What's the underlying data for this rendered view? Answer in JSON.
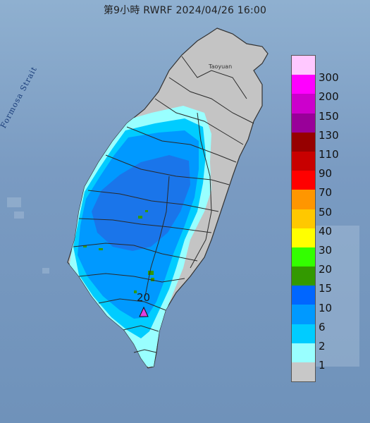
{
  "title": "第9小時  RWRF 2024/04/26 16:00",
  "sea_labels": {
    "strait": "Formosa Strait"
  },
  "place_labels": {
    "taoyuan": "Taoyuan"
  },
  "legend": {
    "entries": [
      {
        "label": "300",
        "color": "#ffc8ff"
      },
      {
        "label": "200",
        "color": "#ff00ff"
      },
      {
        "label": "150",
        "color": "#cc00cc"
      },
      {
        "label": "130",
        "color": "#990099"
      },
      {
        "label": "110",
        "color": "#960000"
      },
      {
        "label": "90",
        "color": "#c80000"
      },
      {
        "label": "70",
        "color": "#ff0000"
      },
      {
        "label": "50",
        "color": "#ff9600"
      },
      {
        "label": "40",
        "color": "#ffc800"
      },
      {
        "label": "30",
        "color": "#ffff00"
      },
      {
        "label": "20",
        "color": "#33ff00"
      },
      {
        "label": "15",
        "color": "#339900"
      },
      {
        "label": "10",
        "color": "#0066ff"
      },
      {
        "label": "6",
        "color": "#0099ff"
      },
      {
        "label": "2",
        "color": "#00ccff"
      },
      {
        "label": "1",
        "color": "#99ffff"
      },
      {
        "label": "",
        "color": "#c8c8c8"
      }
    ]
  },
  "marker": {
    "label": "20",
    "color": "#e040e0"
  },
  "colors": {
    "land_no_rain": "#c4c4c4",
    "sea": "#7a9bc2",
    "boundary": "#2a2a2a"
  }
}
